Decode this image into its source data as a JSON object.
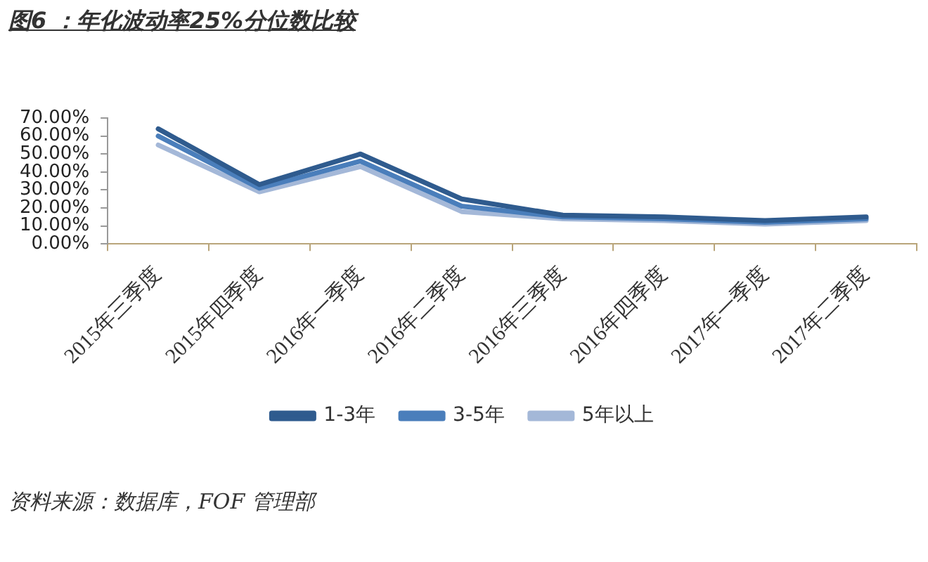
{
  "chart_data": {
    "type": "line",
    "title": "图6 ：年化波动率25%分位数比较",
    "categories": [
      "2015年三季度",
      "2015年四季度",
      "2016年一季度",
      "2016年二季度",
      "2016年三季度",
      "2016年四季度",
      "2017年一季度",
      "2017年二季度"
    ],
    "series": [
      {
        "name": "1-3年",
        "color": "#2f5b8e",
        "values": [
          64,
          33,
          50,
          25,
          16,
          15,
          13,
          15
        ]
      },
      {
        "name": "3-5年",
        "color": "#4a7ebb",
        "values": [
          60,
          31,
          46,
          21,
          15,
          14,
          12,
          14
        ]
      },
      {
        "name": "5年以上",
        "color": "#a4b8d8",
        "values": [
          55,
          29,
          43,
          18,
          14,
          13,
          11,
          13
        ]
      }
    ],
    "ylim": [
      0,
      70
    ],
    "yticks": [
      {
        "value": 0,
        "label": "0.00%"
      },
      {
        "value": 10,
        "label": "10.00%"
      },
      {
        "value": 20,
        "label": "20.00%"
      },
      {
        "value": 30,
        "label": "30.00%"
      },
      {
        "value": 40,
        "label": "40.00%"
      },
      {
        "value": 50,
        "label": "50.00%"
      },
      {
        "value": 60,
        "label": "60.00%"
      },
      {
        "value": 70,
        "label": "70.00%"
      }
    ],
    "legend": "bottom",
    "marker": "none",
    "line_style": "solid",
    "annotations": [
      "资料来源：数据库，FOF 管理部"
    ]
  }
}
